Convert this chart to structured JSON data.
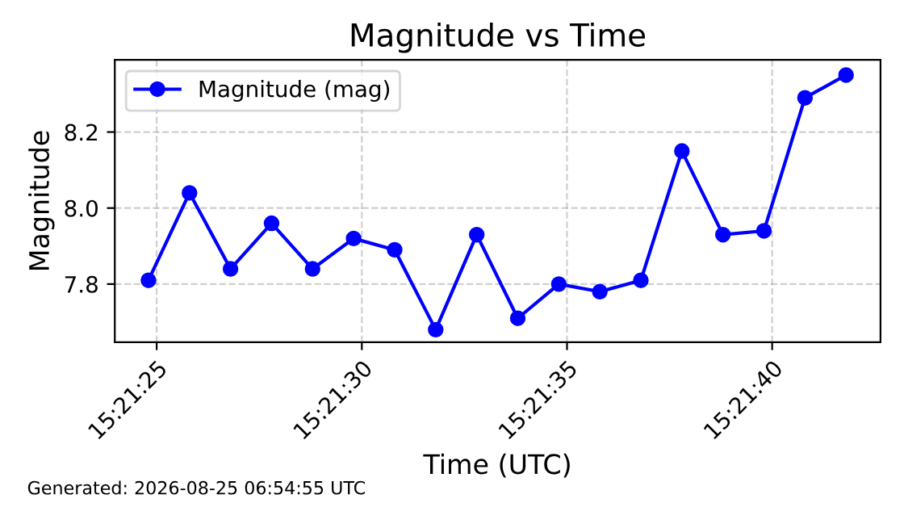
{
  "chart_data": {
    "type": "line",
    "title": "Magnitude vs Time",
    "xlabel": "Time (UTC)",
    "ylabel": "Magnitude",
    "annotations": [
      "Generated: 2026-08-25 06:54:55 UTC"
    ],
    "x": [
      15.3568889,
      15.3571667,
      15.3574444,
      15.3577222,
      15.358,
      15.3582778,
      15.3585556,
      15.3588333,
      15.3591111,
      15.3593889,
      15.3596667,
      15.3599444,
      15.3602222,
      15.3605,
      15.3607778,
      15.3610556,
      15.3613333,
      15.3616111
    ],
    "series": [
      {
        "name": "Magnitude (mag)",
        "color": "#0000ff",
        "values": [
          7.81,
          8.04,
          7.84,
          7.96,
          7.84,
          7.92,
          7.89,
          7.68,
          7.93,
          7.71,
          7.8,
          7.78,
          7.81,
          8.15,
          7.93,
          7.94,
          8.29,
          8.35
        ]
      }
    ],
    "xlim": [
      15.3566611,
      15.3618444
    ],
    "xticks": [
      {
        "value": 15.3569444,
        "label": "15:21:25"
      },
      {
        "value": 15.3583333,
        "label": "15:21:30"
      },
      {
        "value": 15.3597222,
        "label": "15:21:35"
      },
      {
        "value": 15.3611111,
        "label": "15:21:40"
      }
    ],
    "ylim": [
      7.647,
      8.39
    ],
    "yticks": [
      7.8,
      {
        "value": 8.0,
        "label": "8.0"
      },
      8.2
    ],
    "grid": true,
    "legend": "top left",
    "marker": "circle",
    "line_style": "solid"
  }
}
